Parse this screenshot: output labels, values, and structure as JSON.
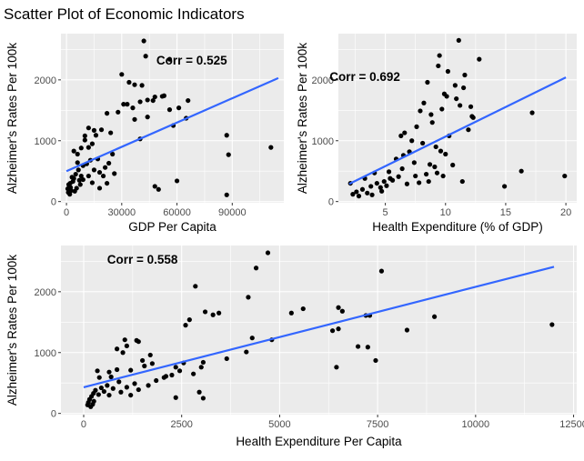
{
  "page_title": "Scatter Plot of Economic Indicators",
  "colors": {
    "panel_bg": "#ebebeb",
    "grid": "#ffffff",
    "point": "#000000",
    "trend": "#3366ff",
    "tick_text": "#4d4d4d"
  },
  "chart_data": [
    {
      "type": "scatter",
      "xlabel": "GDP Per Capita",
      "ylabel": "Alzheimer's Rates Per 100k",
      "annotation": "Corr = 0.525",
      "annotation_anchor": {
        "x": 68000,
        "y": 2250
      },
      "xlim": [
        -3000,
        118000
      ],
      "ylim": [
        -20,
        2760
      ],
      "x_ticks": [
        0,
        30000,
        60000,
        90000
      ],
      "x_tick_labels": [
        "0",
        "30000",
        "60000",
        "90000"
      ],
      "y_ticks": [
        0,
        1000,
        2000
      ],
      "y_tick_labels": [
        "0",
        "1000",
        "2000"
      ],
      "grid": true,
      "trend_line": {
        "x": [
          0,
          115000
        ],
        "y": [
          500,
          2030
        ]
      },
      "points": [
        [
          42000,
          2640
        ],
        [
          43000,
          2390
        ],
        [
          56000,
          2340
        ],
        [
          30000,
          2090
        ],
        [
          34000,
          1960
        ],
        [
          37000,
          1920
        ],
        [
          41000,
          1910
        ],
        [
          47000,
          1660
        ],
        [
          48000,
          1720
        ],
        [
          52000,
          1730
        ],
        [
          53000,
          1740
        ],
        [
          66000,
          1660
        ],
        [
          61000,
          1540
        ],
        [
          56000,
          1510
        ],
        [
          44000,
          1670
        ],
        [
          40000,
          1640
        ],
        [
          36000,
          1540
        ],
        [
          33000,
          1600
        ],
        [
          31000,
          1600
        ],
        [
          28000,
          1470
        ],
        [
          22000,
          1450
        ],
        [
          37000,
          1350
        ],
        [
          40000,
          1030
        ],
        [
          24000,
          1130
        ],
        [
          44000,
          1390
        ],
        [
          58000,
          1250
        ],
        [
          65000,
          1370
        ],
        [
          87000,
          1090
        ],
        [
          111000,
          890
        ],
        [
          88000,
          770
        ],
        [
          87000,
          110
        ],
        [
          48000,
          250
        ],
        [
          50000,
          200
        ],
        [
          60000,
          340
        ],
        [
          12000,
          1210
        ],
        [
          15000,
          1170
        ],
        [
          19000,
          1180
        ],
        [
          16000,
          1090
        ],
        [
          10000,
          1010
        ],
        [
          12000,
          890
        ],
        [
          8000,
          880
        ],
        [
          4000,
          830
        ],
        [
          6000,
          780
        ],
        [
          6000,
          640
        ],
        [
          9000,
          590
        ],
        [
          11000,
          620
        ],
        [
          13000,
          680
        ],
        [
          17000,
          700
        ],
        [
          14000,
          950
        ],
        [
          10000,
          1080
        ],
        [
          4000,
          380
        ],
        [
          2000,
          300
        ],
        [
          3000,
          400
        ],
        [
          1500,
          250
        ],
        [
          2500,
          180
        ],
        [
          1000,
          150
        ],
        [
          1800,
          120
        ],
        [
          700,
          210
        ],
        [
          3500,
          330
        ],
        [
          5000,
          450
        ],
        [
          6500,
          520
        ],
        [
          8000,
          420
        ],
        [
          7500,
          280
        ],
        [
          9000,
          360
        ],
        [
          12000,
          420
        ],
        [
          15000,
          520
        ],
        [
          18000,
          480
        ],
        [
          21000,
          560
        ],
        [
          23000,
          630
        ],
        [
          25000,
          780
        ],
        [
          18000,
          220
        ],
        [
          22000,
          300
        ],
        [
          26000,
          460
        ],
        [
          20000,
          420
        ],
        [
          14000,
          310
        ],
        [
          5500,
          220
        ],
        [
          4500,
          170
        ],
        [
          1200,
          280
        ],
        [
          2200,
          230
        ],
        [
          7000,
          350
        ]
      ]
    },
    {
      "type": "scatter",
      "xlabel": "Health Expenditure (% of GDP)",
      "ylabel": "Alzheimer's Rates Per 100k",
      "annotation": "Corr = 0.692",
      "annotation_anchor": {
        "x": 3.3,
        "y": 1980
      },
      "xlim": [
        1.1,
        20.9
      ],
      "ylim": [
        -20,
        2760
      ],
      "x_ticks": [
        5,
        10,
        15,
        20
      ],
      "x_tick_labels": [
        "5",
        "10",
        "15",
        "20"
      ],
      "y_ticks": [
        0,
        1000,
        2000
      ],
      "y_tick_labels": [
        "0",
        "1000",
        "2000"
      ],
      "grid": true,
      "trend_line": {
        "x": [
          2,
          20
        ],
        "y": [
          290,
          2040
        ]
      },
      "points": [
        [
          11.1,
          2650
        ],
        [
          9.5,
          2400
        ],
        [
          12.8,
          2340
        ],
        [
          9.4,
          2230
        ],
        [
          10.2,
          2140
        ],
        [
          11.6,
          2080
        ],
        [
          8.5,
          1960
        ],
        [
          10.8,
          1910
        ],
        [
          11.5,
          1870
        ],
        [
          9.9,
          1770
        ],
        [
          10.1,
          1730
        ],
        [
          10.9,
          1690
        ],
        [
          11.2,
          1580
        ],
        [
          12.1,
          1560
        ],
        [
          12.2,
          1400
        ],
        [
          12.3,
          1380
        ],
        [
          7.9,
          1490
        ],
        [
          8.2,
          1620
        ],
        [
          9.7,
          1520
        ],
        [
          11.9,
          1180
        ],
        [
          10.3,
          1080
        ],
        [
          17.2,
          1460
        ],
        [
          16.3,
          500
        ],
        [
          14.9,
          250
        ],
        [
          19.9,
          420
        ],
        [
          8.8,
          1430
        ],
        [
          8.9,
          1300
        ],
        [
          7.6,
          1230
        ],
        [
          6.6,
          1130
        ],
        [
          6.3,
          1080
        ],
        [
          7.2,
          1000
        ],
        [
          8.1,
          960
        ],
        [
          9.2,
          900
        ],
        [
          9.6,
          830
        ],
        [
          10.0,
          780
        ],
        [
          6.5,
          760
        ],
        [
          5.9,
          700
        ],
        [
          7.4,
          640
        ],
        [
          8.7,
          610
        ],
        [
          9.1,
          570
        ],
        [
          10.6,
          600
        ],
        [
          9.3,
          470
        ],
        [
          8.4,
          450
        ],
        [
          7.5,
          420
        ],
        [
          6.1,
          410
        ],
        [
          5.4,
          380
        ],
        [
          4.9,
          330
        ],
        [
          4.3,
          300
        ],
        [
          5.6,
          350
        ],
        [
          3.8,
          250
        ],
        [
          3.1,
          200
        ],
        [
          2.6,
          160
        ],
        [
          2.3,
          120
        ],
        [
          2.8,
          90
        ],
        [
          3.5,
          140
        ],
        [
          4.6,
          230
        ],
        [
          5.1,
          260
        ],
        [
          6.8,
          290
        ],
        [
          7.8,
          310
        ],
        [
          8.6,
          330
        ],
        [
          9.8,
          420
        ],
        [
          11.4,
          330
        ],
        [
          5.3,
          490
        ],
        [
          4.1,
          470
        ],
        [
          3.3,
          380
        ],
        [
          2.1,
          300
        ],
        [
          6.4,
          540
        ],
        [
          7.0,
          820
        ],
        [
          4.7,
          170
        ],
        [
          3.9,
          110
        ]
      ]
    },
    {
      "type": "scatter",
      "xlabel": "Health Expenditure Per Capita",
      "ylabel": "Alzheimer's Rates Per 100k",
      "annotation": "Corr = 0.558",
      "annotation_anchor": {
        "x": 1500,
        "y": 2460
      },
      "xlim": [
        -580,
        12580
      ],
      "ylim": [
        -20,
        2760
      ],
      "x_ticks": [
        0,
        2500,
        5000,
        7500,
        10000,
        12500
      ],
      "x_tick_labels": [
        "0",
        "2500",
        "5000",
        "7500",
        "10000",
        "12500"
      ],
      "y_ticks": [
        0,
        1000,
        2000
      ],
      "y_tick_labels": [
        "0",
        "1000",
        "2000"
      ],
      "grid": true,
      "trend_line": {
        "x": [
          0,
          12000
        ],
        "y": [
          430,
          2410
        ]
      },
      "points": [
        [
          4700,
          2640
        ],
        [
          4400,
          2390
        ],
        [
          7600,
          2340
        ],
        [
          2850,
          2090
        ],
        [
          4200,
          1910
        ],
        [
          3100,
          1670
        ],
        [
          3300,
          1620
        ],
        [
          3450,
          1650
        ],
        [
          2700,
          1540
        ],
        [
          2600,
          1450
        ],
        [
          5300,
          1650
        ],
        [
          5600,
          1720
        ],
        [
          6500,
          1740
        ],
        [
          6600,
          1680
        ],
        [
          7200,
          1610
        ],
        [
          7300,
          1610
        ],
        [
          8950,
          1590
        ],
        [
          11950,
          1460
        ],
        [
          6350,
          1360
        ],
        [
          6500,
          1390
        ],
        [
          8250,
          1370
        ],
        [
          4800,
          1210
        ],
        [
          4300,
          1240
        ],
        [
          7000,
          1100
        ],
        [
          7250,
          1090
        ],
        [
          4150,
          1010
        ],
        [
          7450,
          870
        ],
        [
          6450,
          760
        ],
        [
          3650,
          900
        ],
        [
          2550,
          830
        ],
        [
          2350,
          760
        ],
        [
          3050,
          840
        ],
        [
          2950,
          350
        ],
        [
          3050,
          250
        ],
        [
          2350,
          260
        ],
        [
          2250,
          630
        ],
        [
          2050,
          590
        ],
        [
          1700,
          960
        ],
        [
          1500,
          870
        ],
        [
          1350,
          1200
        ],
        [
          1400,
          1180
        ],
        [
          1050,
          1210
        ],
        [
          1100,
          1110
        ],
        [
          1000,
          1000
        ],
        [
          850,
          1060
        ],
        [
          1750,
          820
        ],
        [
          1550,
          780
        ],
        [
          1200,
          710
        ],
        [
          850,
          720
        ],
        [
          650,
          680
        ],
        [
          400,
          590
        ],
        [
          350,
          700
        ],
        [
          700,
          600
        ],
        [
          900,
          520
        ],
        [
          1300,
          490
        ],
        [
          1100,
          430
        ],
        [
          600,
          460
        ],
        [
          450,
          420
        ],
        [
          300,
          380
        ],
        [
          250,
          330
        ],
        [
          200,
          280
        ],
        [
          150,
          230
        ],
        [
          120,
          180
        ],
        [
          100,
          140
        ],
        [
          180,
          110
        ],
        [
          260,
          200
        ],
        [
          380,
          310
        ],
        [
          520,
          360
        ],
        [
          650,
          300
        ],
        [
          750,
          410
        ],
        [
          950,
          350
        ],
        [
          1200,
          300
        ],
        [
          1400,
          390
        ],
        [
          1650,
          460
        ],
        [
          1850,
          540
        ],
        [
          2100,
          610
        ],
        [
          2450,
          700
        ],
        [
          2800,
          650
        ],
        [
          3000,
          760
        ],
        [
          230,
          150
        ]
      ]
    }
  ]
}
